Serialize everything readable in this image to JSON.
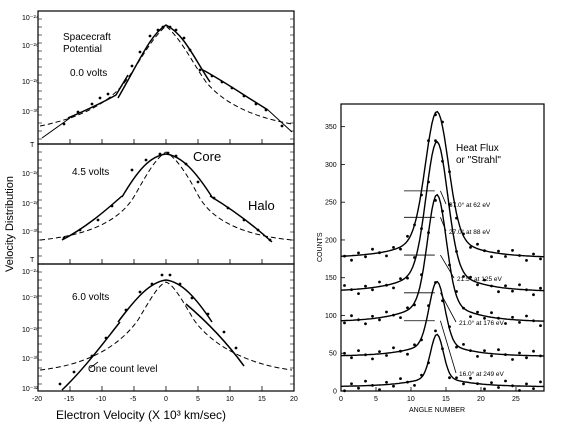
{
  "left_figure": {
    "ylabel": "Velocity   Distribution",
    "xlabel": "Electron Velocity (X 10³ km/sec)",
    "xticks": [
      "-20",
      "-15",
      "-10",
      "-5",
      "0",
      "5",
      "10",
      "15",
      "20"
    ],
    "annotation_title_1": "Spacecraft",
    "annotation_title_2": "Potential",
    "core_label": "Core",
    "halo_label": "Halo",
    "one_count_label": "One count level",
    "panels": [
      {
        "voltage": "0.0 volts",
        "yticks": [
          "10⁻²⁴",
          "10⁻²⁶",
          "10⁻²⁸",
          "10⁻³⁰"
        ],
        "bottom_tick": "T"
      },
      {
        "voltage": "4.5 volts",
        "yticks": [
          "10⁻²⁶",
          "10⁻²⁸",
          "10⁻³⁰"
        ],
        "bottom_tick": "T"
      },
      {
        "voltage": "6.0 volts",
        "yticks": [
          "10⁻²⁴",
          "10⁻²⁶",
          "10⁻²⁸",
          "10⁻³⁰",
          "10⁻³²"
        ],
        "bottom_tick": ""
      }
    ]
  },
  "right_figure": {
    "ylabel": "COUNTS",
    "xlabel": "ANGLE NUMBER",
    "title_1": "Heat Flux",
    "title_2": "or \"Strahl\"",
    "yticks": [
      "0",
      "50",
      "100",
      "150",
      "200",
      "250",
      "300",
      "350"
    ],
    "xticks": [
      "0",
      "5",
      "10",
      "15",
      "20",
      "25"
    ],
    "curve_labels": [
      "37.0° at 62 eV",
      "27.0° at 88 eV",
      "21.5° at 125 eV",
      "21.0° at 176 eV",
      "16.0° at 249 eV"
    ]
  },
  "chart_data": [
    {
      "type": "line",
      "title": "",
      "xlabel": "Electron Velocity (X 10³ km/sec)",
      "ylabel": "Velocity   Distribution",
      "xlim": [
        -20,
        20
      ],
      "yscale": "log",
      "panels": [
        {
          "label": "0.0 volts",
          "ylim_exponent": [
            -31.5,
            -24
          ]
        },
        {
          "label": "4.5 volts",
          "ylim_exponent": [
            -31,
            -25
          ]
        },
        {
          "label": "6.0 volts",
          "ylim_exponent": [
            -32,
            -24
          ]
        }
      ]
    },
    {
      "type": "line",
      "title": "",
      "xlabel": "ANGLE NUMBER",
      "ylabel": "COUNTS",
      "xlim": [
        0,
        29
      ],
      "ylim": [
        0,
        380
      ],
      "series": [
        {
          "name": "37.0° at 62 eV",
          "baseline": 175,
          "peak": 370
        },
        {
          "name": "27.0° at 88 eV",
          "baseline": 130,
          "peak": 330
        },
        {
          "name": "21.5° at 125 eV",
          "baseline": 90,
          "peak": 260
        },
        {
          "name": "21.0° at 176 eV",
          "baseline": 45,
          "peak": 145
        },
        {
          "name": "16.0° at 249 eV",
          "baseline": 5,
          "peak": 75
        }
      ]
    }
  ]
}
